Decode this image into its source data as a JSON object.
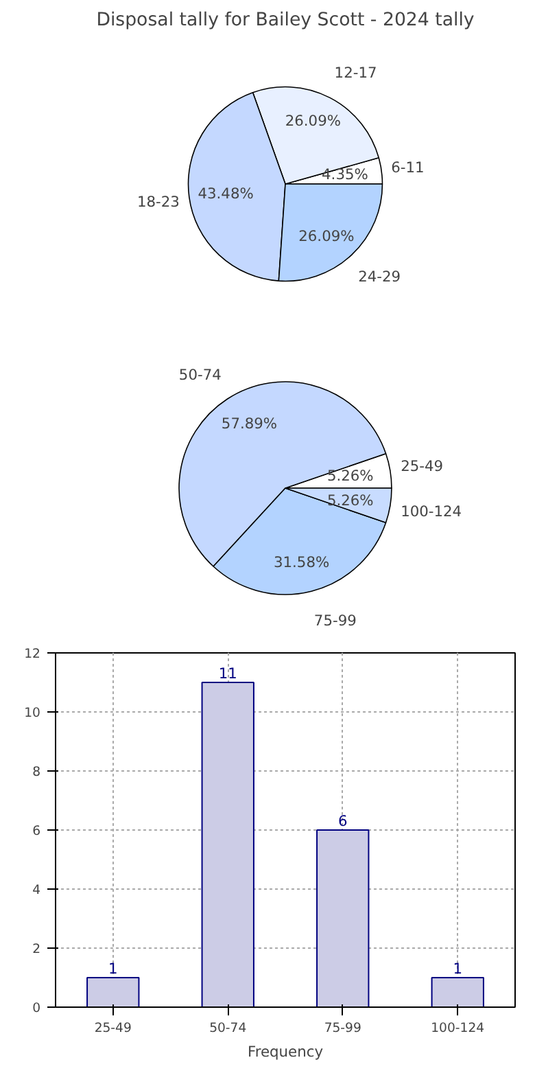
{
  "chart_data": [
    {
      "type": "pie",
      "title": "Disposal tally for Bailey Scott - 2024 tally",
      "categories": [
        "6-11",
        "12-17",
        "18-23",
        "24-29"
      ],
      "values": [
        4.35,
        26.09,
        43.48,
        26.09
      ],
      "colors": [
        "#ffffff",
        "#e8f0ff",
        "#c4d8ff",
        "#b3d3ff"
      ],
      "value_labels": [
        "4.35%",
        "26.09%",
        "43.48%",
        "26.09%"
      ]
    },
    {
      "type": "pie",
      "categories": [
        "25-49",
        "50-74",
        "75-99",
        "100-124"
      ],
      "values": [
        5.26,
        57.89,
        31.58,
        5.26
      ],
      "colors": [
        "#ffffff",
        "#c4d8ff",
        "#b3d3ff",
        "#c8dcff"
      ],
      "value_labels": [
        "5.26%",
        "57.89%",
        "31.58%",
        "5.26%"
      ]
    },
    {
      "type": "bar",
      "xlabel": "Frequency",
      "categories": [
        "25-49",
        "50-74",
        "75-99",
        "100-124"
      ],
      "values": [
        1,
        11,
        6,
        1
      ],
      "color": "#cccce6",
      "ylim": [
        0,
        12
      ],
      "yticks": [
        0,
        2,
        4,
        6,
        8,
        10,
        12
      ],
      "grid": true,
      "data_labels": true
    }
  ]
}
